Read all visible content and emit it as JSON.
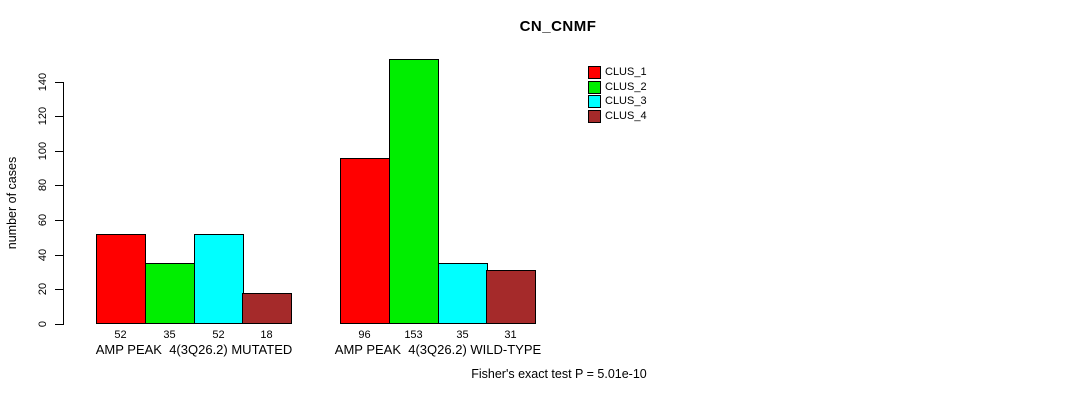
{
  "figure": {
    "background": "#ffffff"
  },
  "chart_data": {
    "type": "bar",
    "title": "CN_CNMF",
    "ylabel": "number of cases",
    "xlabel": "",
    "ylim": [
      0,
      155
    ],
    "yticks": [
      0,
      20,
      40,
      60,
      80,
      100,
      120,
      140
    ],
    "grid": false,
    "categories": [
      "AMP PEAK  4(3Q26.2) MUTATED",
      "AMP PEAK  4(3Q26.2) WILD-TYPE"
    ],
    "series": [
      {
        "name": "CLUS_1",
        "color": "#ff0000",
        "values": [
          52,
          96
        ]
      },
      {
        "name": "CLUS_2",
        "color": "#00ee00",
        "values": [
          35,
          153
        ]
      },
      {
        "name": "CLUS_3",
        "color": "#00ffff",
        "values": [
          52,
          35
        ]
      },
      {
        "name": "CLUS_4",
        "color": "#a52a2a",
        "values": [
          18,
          31
        ]
      }
    ],
    "bar_value_labels": true,
    "legend_entries": [
      "CLUS_1",
      "CLUS_2",
      "CLUS_3",
      "CLUS_4"
    ],
    "legend_position": "top-right",
    "annotation": "Fisher's exact test P = 5.01e-10"
  }
}
